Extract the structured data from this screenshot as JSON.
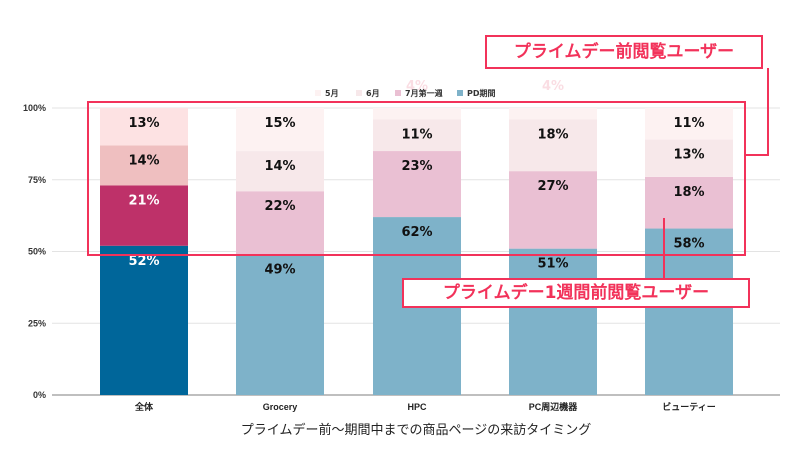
{
  "chart_data": {
    "type": "bar",
    "stacked": true,
    "title": "",
    "xlabel": "プライムデー前〜期間中までの商品ページの来訪タイミング",
    "ylabel": "",
    "ylim": [
      0,
      100
    ],
    "yticks": [
      "0%",
      "25%",
      "50%",
      "75%",
      "100%"
    ],
    "ytick_values": [
      0,
      25,
      50,
      75,
      100
    ],
    "grid": true,
    "legend_position": "top",
    "categories": [
      "全体",
      "Grocery",
      "HPC",
      "PC周辺機器",
      "ビューティー"
    ],
    "series": [
      {
        "name": "PD期間",
        "values": [
          52,
          49,
          62,
          51,
          58
        ],
        "labels": [
          "52%",
          "49%",
          "62%",
          "51%",
          "58%"
        ],
        "color": "#7eb2c9",
        "highlight_color": "#00669a"
      },
      {
        "name": "7月第一週",
        "values": [
          21,
          22,
          23,
          27,
          18
        ],
        "labels": [
          "21%",
          "22%",
          "23%",
          "27%",
          "18%"
        ],
        "color": "#eac0d3",
        "highlight_color": "#be3169"
      },
      {
        "name": "6月",
        "values": [
          14,
          14,
          11,
          18,
          13
        ],
        "labels": [
          "14%",
          "14%",
          "11%",
          "18%",
          "13%"
        ],
        "color": "#f7e8ea",
        "highlight_color": "#efbfc0"
      },
      {
        "name": "5月",
        "values": [
          13,
          15,
          4,
          4,
          11
        ],
        "labels": [
          "13%",
          "15%",
          "4%",
          "4%",
          "11%"
        ],
        "color": "#fdf2f2",
        "highlight_color": "#fde2e3"
      }
    ],
    "legend": [
      "5月",
      "6月",
      "7月第一週",
      "PD期間"
    ],
    "highlighted_category": "全体"
  },
  "annotations": {
    "box_top_label": "プライムデー前閲覧ユーザー",
    "box_bottom_label": "プライムデー1週間前閲覧ユーザー",
    "accent_color": "#f2325a"
  }
}
